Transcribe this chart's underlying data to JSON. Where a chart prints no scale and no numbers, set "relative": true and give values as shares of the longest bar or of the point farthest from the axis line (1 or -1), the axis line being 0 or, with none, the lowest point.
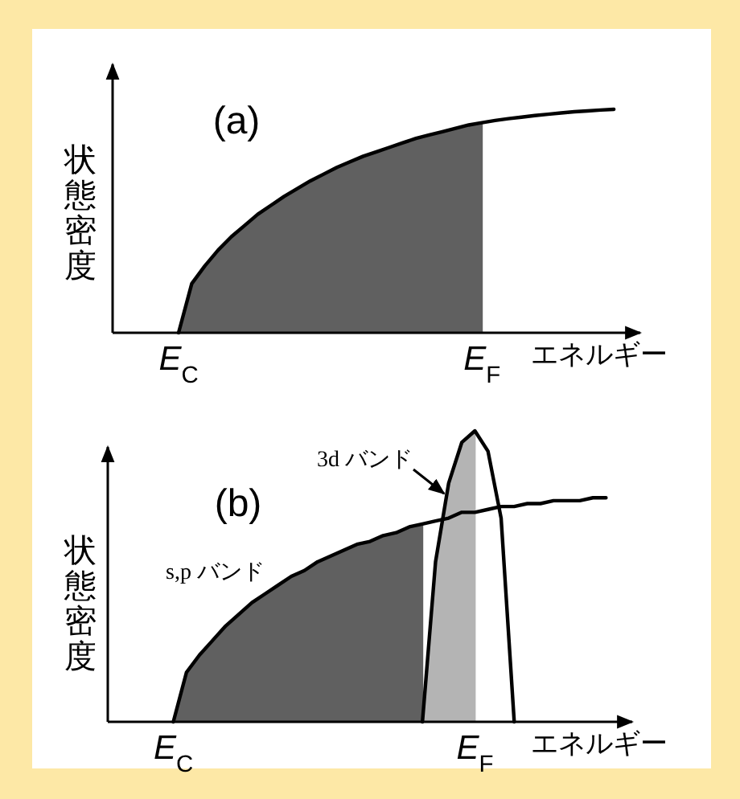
{
  "chart_data": [
    {
      "type": "area",
      "relative": true,
      "xlabel": "エネルギー",
      "ylabel": "状態密度",
      "annotations": [
        "(a)"
      ],
      "categories": [
        null,
        null,
        null,
        null,
        null,
        "E$_{C}$",
        null,
        null,
        null,
        null,
        null,
        null,
        null,
        null,
        null,
        null,
        null,
        null,
        null,
        null,
        null,
        null,
        null,
        null,
        null,
        null,
        null,
        null,
        "E$_{F}$",
        null,
        null,
        null,
        null,
        null,
        null,
        null,
        null,
        null,
        null,
        null,
        null
      ],
      "series": [
        {
          "color": "#606060",
          "values": [
            null,
            null,
            null,
            null,
            null,
            0,
            0.22,
            0.3,
            0.37,
            0.43,
            0.48,
            0.53,
            0.57,
            0.61,
            0.645,
            0.68,
            0.71,
            0.74,
            0.765,
            0.79,
            0.81,
            0.83,
            0.85,
            0.87,
            0.885,
            0.9,
            0.915,
            0.93,
            0.94,
            null,
            null,
            null,
            null,
            null,
            null,
            null,
            null,
            null,
            null,
            null,
            null
          ]
        },
        {
          "type": "line",
          "color": "#000000",
          "values": [
            null,
            null,
            null,
            null,
            null,
            0,
            0.22,
            0.3,
            0.37,
            0.43,
            0.48,
            0.53,
            0.57,
            0.61,
            0.645,
            0.68,
            0.71,
            0.74,
            0.765,
            0.79,
            0.81,
            0.83,
            0.85,
            0.87,
            0.885,
            0.9,
            0.915,
            0.93,
            0.94,
            0.95,
            0.958,
            0.965,
            0.972,
            0.978,
            0.984,
            0.989,
            0.993,
            0.997,
            1,
            null,
            null
          ]
        }
      ]
    },
    {
      "type": "area",
      "relative": true,
      "xlabel": "エネルギー",
      "ylabel": "状態密度",
      "annotations": [
        "(b)",
        "s,p バンド",
        "3d バンド"
      ],
      "categories": [
        null,
        null,
        null,
        null,
        null,
        "E$_{C}$",
        null,
        null,
        null,
        null,
        null,
        null,
        null,
        null,
        null,
        null,
        null,
        null,
        null,
        null,
        null,
        null,
        null,
        null,
        null,
        null,
        null,
        null,
        "E$_{F}$",
        null,
        null,
        null,
        null,
        null,
        null,
        null,
        null,
        null,
        null,
        null,
        null
      ],
      "series": [
        {
          "color": "#606060",
          "values": [
            null,
            null,
            null,
            null,
            null,
            0,
            0.17,
            0.23,
            0.28,
            0.33,
            0.37,
            0.41,
            0.44,
            0.47,
            0.5,
            0.52,
            0.55,
            0.57,
            0.59,
            0.61,
            0.62,
            0.64,
            0.65,
            0.67,
            0.68,
            null,
            null,
            null,
            null,
            null,
            null,
            null,
            null,
            null,
            null,
            null,
            null,
            null,
            null,
            null,
            null
          ]
        },
        {
          "color": "#b4b4b4",
          "values": [
            null,
            null,
            null,
            null,
            null,
            null,
            null,
            null,
            null,
            null,
            null,
            null,
            null,
            null,
            null,
            null,
            null,
            null,
            null,
            null,
            null,
            null,
            null,
            null,
            0,
            0.55,
            0.82,
            0.96,
            1,
            null,
            null,
            null,
            null,
            null,
            null,
            null,
            null,
            null,
            null,
            null,
            null
          ]
        },
        {
          "type": "line",
          "color": "#000000",
          "values": [
            null,
            null,
            null,
            null,
            null,
            0,
            0.17,
            0.23,
            0.28,
            0.33,
            0.37,
            0.41,
            0.44,
            0.47,
            0.5,
            0.52,
            0.55,
            0.57,
            0.59,
            0.61,
            0.62,
            0.64,
            0.65,
            0.67,
            0.68,
            0.69,
            0.7,
            0.72,
            0.72,
            0.73,
            0.74,
            0.74,
            0.75,
            0.75,
            0.76,
            0.76,
            0.76,
            0.77,
            0.77,
            null,
            null
          ]
        },
        {
          "type": "line",
          "color": "#000000",
          "values": [
            null,
            null,
            null,
            null,
            null,
            null,
            null,
            null,
            null,
            null,
            null,
            null,
            null,
            null,
            null,
            null,
            null,
            null,
            null,
            null,
            null,
            null,
            null,
            null,
            0,
            0.55,
            0.82,
            0.96,
            1,
            0.93,
            0.7,
            0,
            null,
            null,
            null,
            null,
            null,
            null,
            null,
            null,
            null
          ]
        }
      ]
    }
  ]
}
